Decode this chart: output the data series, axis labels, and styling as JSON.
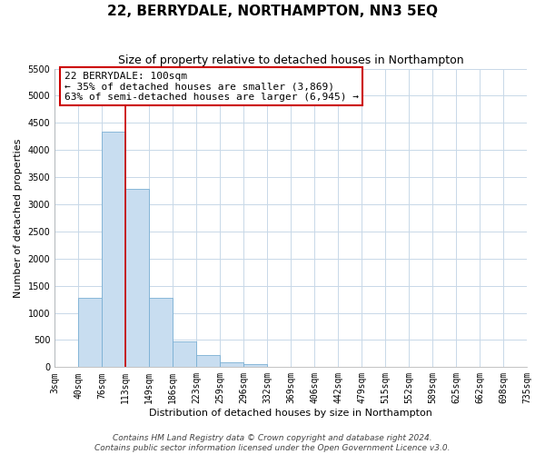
{
  "title": "22, BERRYDALE, NORTHAMPTON, NN3 5EQ",
  "subtitle": "Size of property relative to detached houses in Northampton",
  "xlabel": "Distribution of detached houses by size in Northampton",
  "ylabel": "Number of detached properties",
  "bin_labels": [
    "3sqm",
    "40sqm",
    "76sqm",
    "113sqm",
    "149sqm",
    "186sqm",
    "223sqm",
    "259sqm",
    "296sqm",
    "332sqm",
    "369sqm",
    "406sqm",
    "442sqm",
    "479sqm",
    "515sqm",
    "552sqm",
    "589sqm",
    "625sqm",
    "662sqm",
    "698sqm",
    "735sqm"
  ],
  "bar_values": [
    0,
    1270,
    4330,
    3290,
    1270,
    480,
    230,
    90,
    60,
    0,
    0,
    0,
    0,
    0,
    0,
    0,
    0,
    0,
    0,
    0
  ],
  "bar_color": "#c8ddf0",
  "bar_edgecolor": "#7aafd4",
  "property_line_x": 3.0,
  "annotation_title": "22 BERRYDALE: 100sqm",
  "annotation_line1": "← 35% of detached houses are smaller (3,869)",
  "annotation_line2": "63% of semi-detached houses are larger (6,945) →",
  "annotation_box_facecolor": "#ffffff",
  "annotation_box_edgecolor": "#cc0000",
  "vline_color": "#cc0000",
  "ylim": [
    0,
    5500
  ],
  "yticks": [
    0,
    500,
    1000,
    1500,
    2000,
    2500,
    3000,
    3500,
    4000,
    4500,
    5000,
    5500
  ],
  "grid_color": "#c8d8e8",
  "plot_bg_color": "#ffffff",
  "fig_bg_color": "#ffffff",
  "footer_line1": "Contains HM Land Registry data © Crown copyright and database right 2024.",
  "footer_line2": "Contains public sector information licensed under the Open Government Licence v3.0.",
  "title_fontsize": 11,
  "subtitle_fontsize": 9,
  "axis_label_fontsize": 8,
  "tick_fontsize": 7,
  "annotation_fontsize": 8,
  "footer_fontsize": 6.5
}
